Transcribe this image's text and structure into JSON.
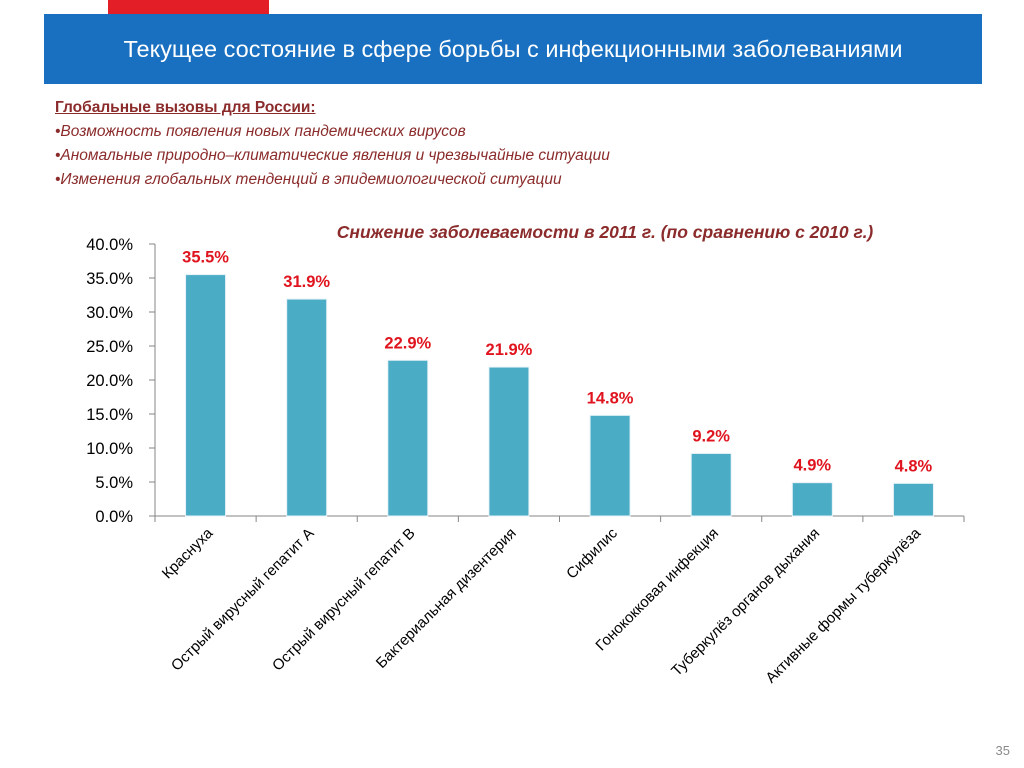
{
  "slide": {
    "title": "Текущее состояние в сфере борьбы с инфекционными заболеваниями",
    "page_number": "35"
  },
  "challenges": {
    "heading": "Глобальные вызовы для России:",
    "items": [
      "•Возможность появления новых пандемических вирусов",
      "•Аномальные природно–климатические явления и чрезвычайные ситуации",
      "•Изменения  глобальных тенденций в эпидемиологической  ситуации"
    ]
  },
  "colors": {
    "title_bar": "#1a70c0",
    "accent_tab": "#e41e26",
    "text_dark_red": "#8b2b2b",
    "bar": "#4bacc6",
    "data_label": "#e0141e"
  },
  "chart_data": {
    "type": "bar",
    "title": "Снижение заболеваемости в 2011 г. (по сравнению с 2010 г.)",
    "categories": [
      "Краснуха",
      "Острый вирусный гепатит А",
      "Острый вирусный гепатит В",
      "Бактериальная дизентерия",
      "Сифилис",
      "Гонококковая инфекция",
      "Туберкулёз органов дыхания",
      "Активные формы туберкулёза"
    ],
    "values": [
      35.5,
      31.9,
      22.9,
      21.9,
      14.8,
      9.2,
      4.9,
      4.8
    ],
    "data_labels": [
      "35.5%",
      "31.9%",
      "22.9%",
      "21.9%",
      "14.8%",
      "9.2%",
      "4.9%",
      "4.8%"
    ],
    "yticks": [
      "0.0%",
      "5.0%",
      "10.0%",
      "15.0%",
      "20.0%",
      "25.0%",
      "30.0%",
      "35.0%",
      "40.0%"
    ],
    "ylim": [
      0,
      40
    ],
    "xlabel": "",
    "ylabel": "",
    "grid": false,
    "legend": "none"
  }
}
